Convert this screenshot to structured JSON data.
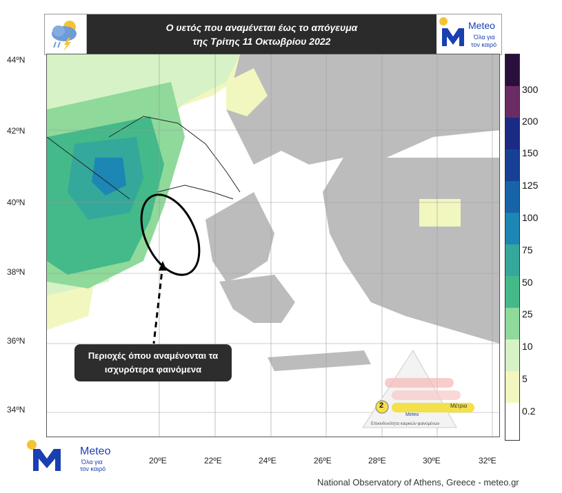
{
  "header": {
    "title_line1": "Ο υετός που αναμένεται έως το απόγευμα",
    "title_line2": "της Τρίτης 11 Οκτωβρίου 2022",
    "weather_icon": "cloud-rain-lightning-icon",
    "logo_text": "Meteo",
    "logo_subtext_1": "Όλα για",
    "logo_subtext_2": "τον καιρό"
  },
  "map": {
    "lat_labels": [
      "44ºN",
      "42ºN",
      "40ºN",
      "38ºN",
      "36ºN",
      "34ºN"
    ],
    "lon_labels": [
      "20ºE",
      "22ºE",
      "24ºE",
      "26ºE",
      "28ºE",
      "30ºE",
      "32ºE"
    ],
    "highlight": "ellipse-ionian-west-greece",
    "callout_line1": "Περιοχές όπου αναμένονται τα",
    "callout_line2": "ισχυρότερα φαινόμενα"
  },
  "colorbar": {
    "labels": [
      "300",
      "200",
      "150",
      "125",
      "100",
      "75",
      "50",
      "25",
      "10",
      "5",
      "0.2"
    ],
    "colors": [
      "#2a0f3d",
      "#6b2b63",
      "#1b2a85",
      "#173f96",
      "#1763a8",
      "#1c86b5",
      "#34a89a",
      "#44b98a",
      "#8fd99a",
      "#d6f2c6",
      "#f1f7bf",
      "#ffffff"
    ]
  },
  "danger_triangle": {
    "level_label": "2",
    "level_text": "Μέτρια",
    "logo_text": "Meteo",
    "caption": "Επικινδυνότητα καιρικών φαινομένων"
  },
  "footer": {
    "logo_text": "Meteo",
    "logo_subtext_1": "Όλα για",
    "logo_subtext_2": "τον καιρό",
    "credit": "National Observatory of Athens, Greece - meteo.gr"
  }
}
